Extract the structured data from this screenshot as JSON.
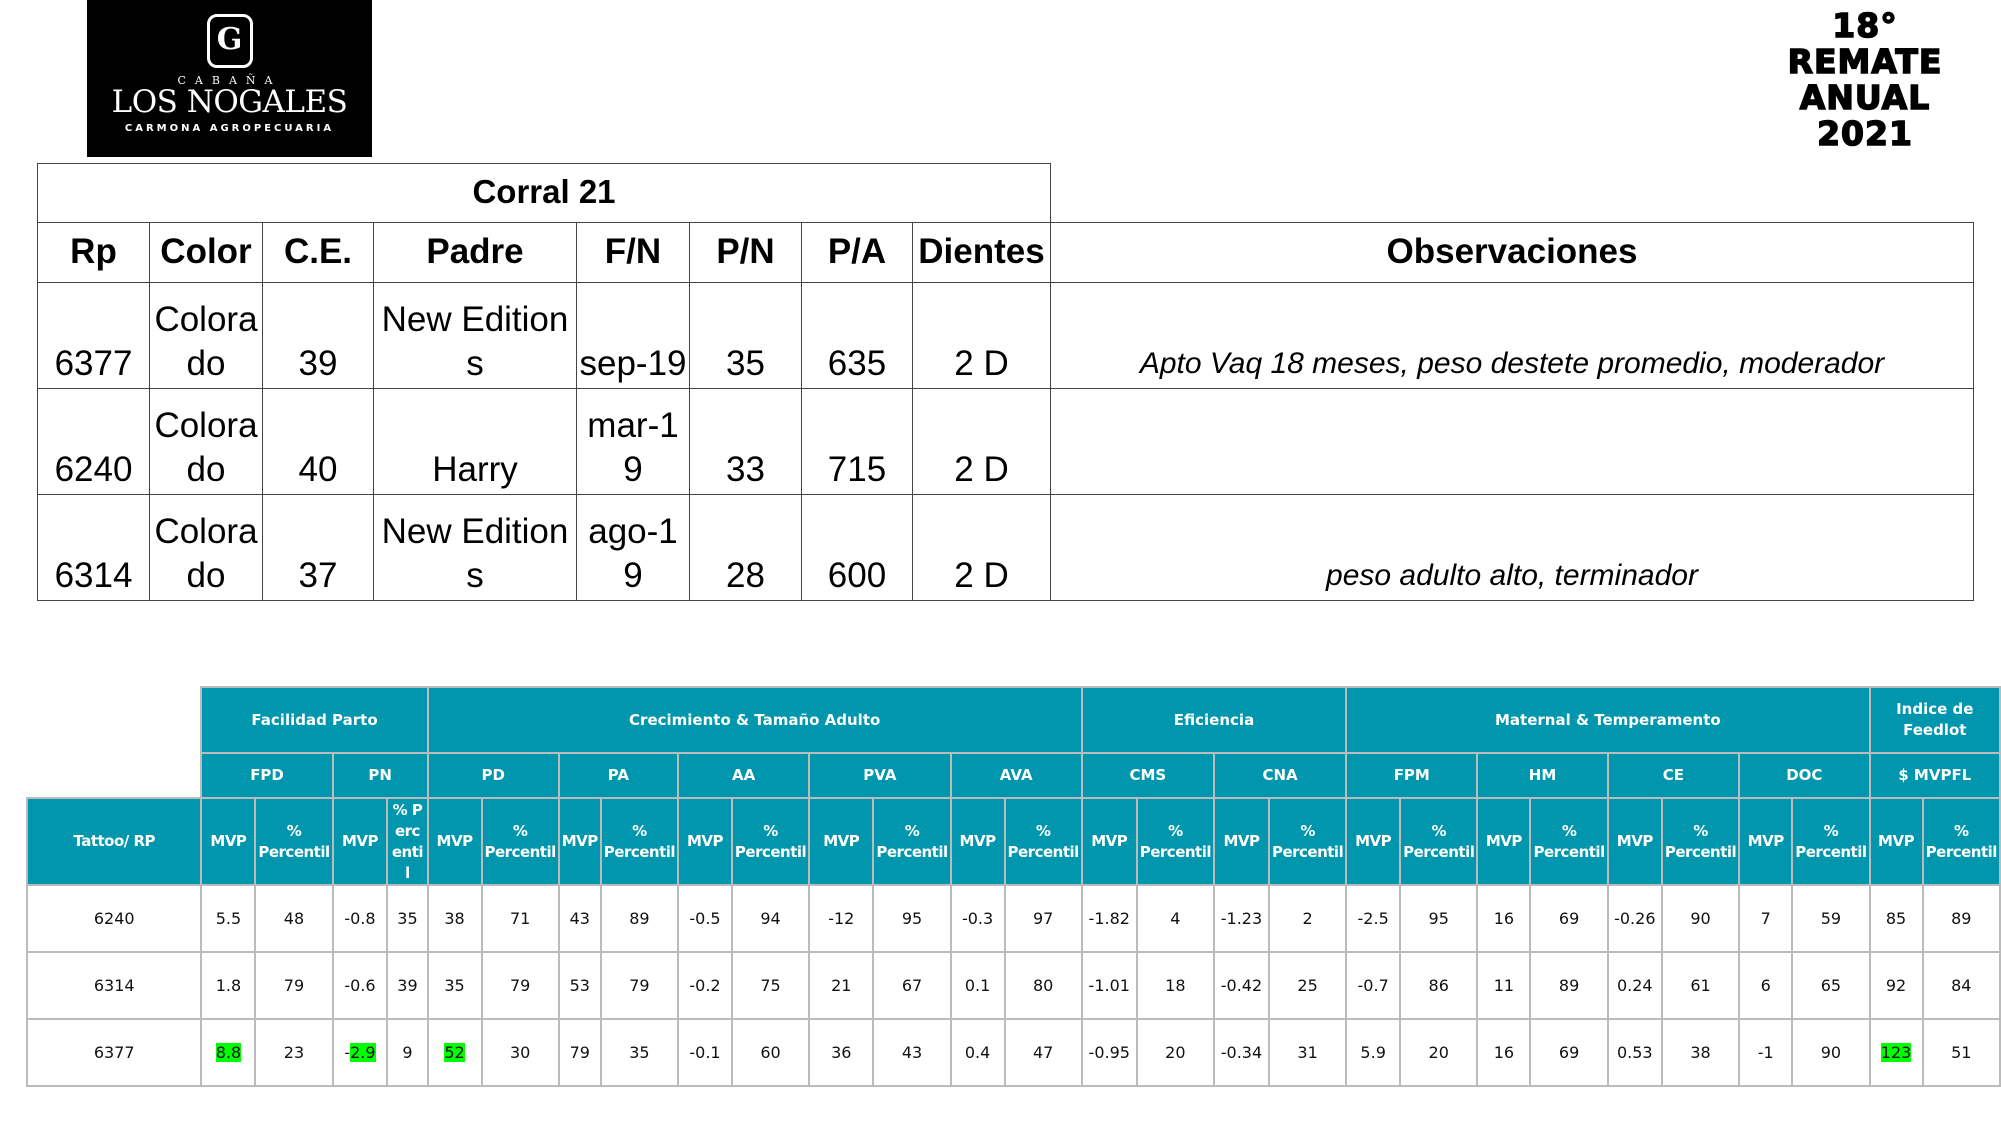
{
  "logo": {
    "brand_top": "CABAÑA",
    "brand_name": "LOS NOGALES",
    "brand_sub": "CARMONA AGROPECUARIA"
  },
  "event": {
    "line1": "18°",
    "line2": "REMATE",
    "line3": "ANUAL",
    "line4": "2021"
  },
  "lot_table": {
    "title": "Corral 21",
    "headers": [
      "Rp",
      "Color",
      "C.E.",
      "Padre",
      "F/N",
      "P/N",
      "P/A",
      "Dientes",
      "Observaciones"
    ],
    "rows": [
      [
        "6377",
        "Colorado",
        "39",
        "New Editions",
        "sep-19",
        "35",
        "635",
        "2 D",
        "Apto Vaq 18 meses, peso destete promedio, moderador"
      ],
      [
        "6240",
        "Colorado",
        "40",
        "Harry",
        "mar-19",
        "33",
        "715",
        "2 D",
        ""
      ],
      [
        "6314",
        "Colorado",
        "37",
        "New Editions",
        "ago-19",
        "28",
        "600",
        "2 D",
        "peso adulto alto, terminador"
      ]
    ]
  },
  "epd_table": {
    "header_color": "#0096ae",
    "highlight_color": "#00ff00",
    "groups": [
      {
        "label": "Facilidad Parto",
        "span": 4
      },
      {
        "label": "Crecimiento & Tamaño Adulto",
        "span": 10
      },
      {
        "label": "Eficiencia",
        "span": 4
      },
      {
        "label": "Maternal & Temperamento",
        "span": 8
      },
      {
        "label": "Indice de Feedlot",
        "span": 2
      }
    ],
    "traits": [
      "FPD",
      "PN",
      "PD",
      "PA",
      "AA",
      "PVA",
      "AVA",
      "CMS",
      "CNA",
      "FPM",
      "HM",
      "CE",
      "DOC",
      "$ MVPFL"
    ],
    "id_header": "Tattoo/ RP",
    "col_headers": [
      "MVP",
      "% Percentil",
      "MVP",
      "% Percentil",
      "MVP",
      "% Percentil",
      "MVP",
      "% Percentil",
      "MVP",
      "% Percentil",
      "MVP",
      "% Percentil",
      "MVP",
      "% Percentil",
      "MVP",
      "% Percentil",
      "MVP",
      "% Percentil",
      "MVP",
      "% Percentil",
      "MVP",
      "% Percentil",
      "MVP",
      "% Percentil",
      "MVP",
      "% Percentil",
      "MVP",
      "% Percentil"
    ],
    "rows": [
      {
        "id": "6240",
        "cells": [
          {
            "v": "5.5"
          },
          {
            "v": "48"
          },
          {
            "v": "-0.8"
          },
          {
            "v": "35"
          },
          {
            "v": "38"
          },
          {
            "v": "71"
          },
          {
            "v": "43"
          },
          {
            "v": "89"
          },
          {
            "v": "-0.5"
          },
          {
            "v": "94"
          },
          {
            "v": "-12"
          },
          {
            "v": "95"
          },
          {
            "v": "-0.3"
          },
          {
            "v": "97"
          },
          {
            "v": "-1.82"
          },
          {
            "v": "4"
          },
          {
            "v": "-1.23"
          },
          {
            "v": "2"
          },
          {
            "v": "-2.5"
          },
          {
            "v": "95"
          },
          {
            "v": "16"
          },
          {
            "v": "69"
          },
          {
            "v": "-0.26"
          },
          {
            "v": "90"
          },
          {
            "v": "7"
          },
          {
            "v": "59"
          },
          {
            "v": "85"
          },
          {
            "v": "89"
          }
        ]
      },
      {
        "id": "6314",
        "cells": [
          {
            "v": "1.8"
          },
          {
            "v": "79"
          },
          {
            "v": "-0.6"
          },
          {
            "v": "39"
          },
          {
            "v": "35"
          },
          {
            "v": "79"
          },
          {
            "v": "53"
          },
          {
            "v": "79"
          },
          {
            "v": "-0.2"
          },
          {
            "v": "75"
          },
          {
            "v": "21"
          },
          {
            "v": "67"
          },
          {
            "v": "0.1"
          },
          {
            "v": "80"
          },
          {
            "v": "-1.01"
          },
          {
            "v": "18"
          },
          {
            "v": "-0.42"
          },
          {
            "v": "25"
          },
          {
            "v": "-0.7"
          },
          {
            "v": "86"
          },
          {
            "v": "11"
          },
          {
            "v": "89"
          },
          {
            "v": "0.24"
          },
          {
            "v": "61"
          },
          {
            "v": "6"
          },
          {
            "v": "65"
          },
          {
            "v": "92"
          },
          {
            "v": "84"
          }
        ]
      },
      {
        "id": "6377",
        "cells": [
          {
            "v": "",
            "hl": "8.8"
          },
          {
            "v": "23"
          },
          {
            "v": "-",
            "hl": "2.9"
          },
          {
            "v": "9"
          },
          {
            "v": "",
            "hl": "52"
          },
          {
            "v": "30"
          },
          {
            "v": "79"
          },
          {
            "v": "35"
          },
          {
            "v": "-0.1"
          },
          {
            "v": "60"
          },
          {
            "v": "36"
          },
          {
            "v": "43"
          },
          {
            "v": "0.4"
          },
          {
            "v": "47"
          },
          {
            "v": "-0.95"
          },
          {
            "v": "20"
          },
          {
            "v": "-0.34"
          },
          {
            "v": "31"
          },
          {
            "v": "5.9"
          },
          {
            "v": "20"
          },
          {
            "v": "16"
          },
          {
            "v": "69"
          },
          {
            "v": "0.53"
          },
          {
            "v": "38"
          },
          {
            "v": "-1"
          },
          {
            "v": "90"
          },
          {
            "v": "",
            "hl": "123"
          },
          {
            "v": "51"
          }
        ]
      }
    ]
  }
}
